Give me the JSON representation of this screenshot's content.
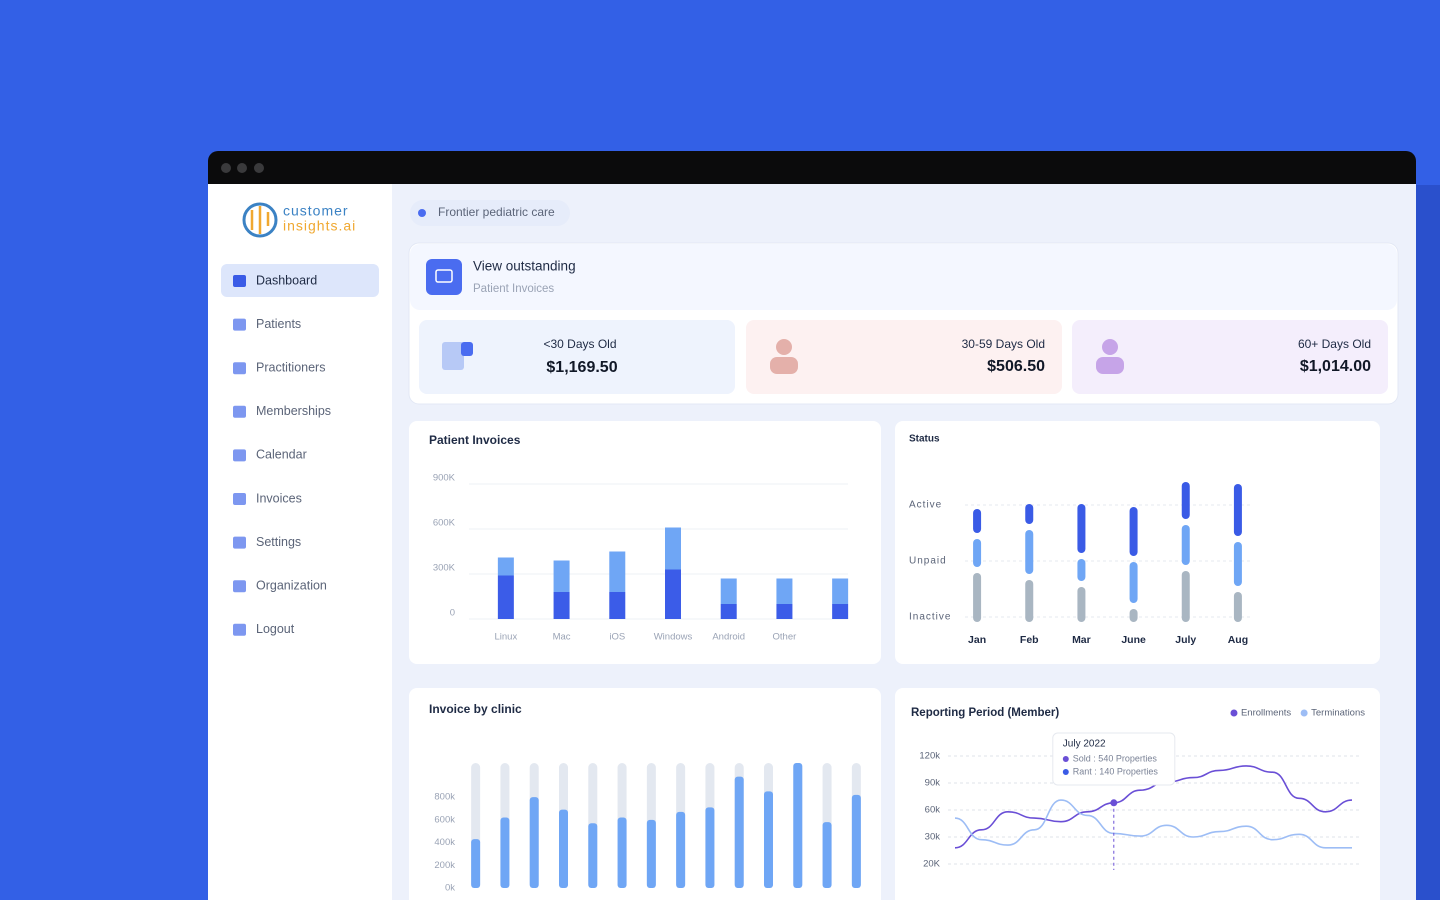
{
  "sidebar": {
    "logo": [
      "customer",
      "insights.ai"
    ],
    "nav": [
      "Dashboard",
      "Patients",
      "Practitioners",
      "Memberships",
      "Calendar",
      "Invoices",
      "Settings",
      "Organization",
      "Logout"
    ]
  },
  "header": {
    "location": "Frontier pediatric care"
  },
  "outstanding": {
    "title": "View outstanding",
    "subtitle": "Patient Invoices",
    "cards": [
      {
        "label": "<30 Days Old",
        "amount": "$1,169.50"
      },
      {
        "label": "30-59 Days Old",
        "amount": "$506.50"
      },
      {
        "label": "60+ Days Old",
        "amount": "$1,014.00"
      }
    ]
  },
  "chart_data": [
    {
      "type": "bar",
      "title": "Patient Invoices",
      "stacked": true,
      "grid": true,
      "categories": [
        "Linux",
        "Mac",
        "iOS",
        "Windows",
        "Android",
        "Other",
        null
      ],
      "series": [
        {
          "color": "#3b5ce8",
          "values": [
            290000,
            180000,
            180000,
            330000,
            100000,
            100000,
            100000
          ]
        },
        {
          "color": "#6fa6f5",
          "values": [
            120000,
            210000,
            270000,
            280000,
            170000,
            170000,
            170000
          ]
        }
      ],
      "ylim": [
        0,
        900000
      ],
      "yticks": [
        0,
        {
          "value": 300000,
          "label": "300K"
        },
        {
          "value": 600000,
          "label": "600K"
        },
        {
          "value": 900000,
          "label": "900K"
        }
      ]
    },
    {
      "type": "bar",
      "title": "Status",
      "stacked": true,
      "grid": true,
      "categories": [
        "Jan",
        "Feb",
        "Mar",
        "June",
        "July",
        "Aug"
      ],
      "series": [
        {
          "name": "Inactive",
          "color": "#a9b6c2",
          "values": [
            55,
            48,
            41,
            19,
            57,
            36
          ]
        },
        {
          "name": "Unpaid",
          "color": "#6fa6f5",
          "values": [
            34,
            50,
            28,
            47,
            46,
            50
          ]
        },
        {
          "name": "Active",
          "color": "#3a5be6",
          "values": [
            30,
            26,
            55,
            55,
            43,
            58
          ]
        }
      ],
      "ylim": [
        0,
        150
      ]
    },
    {
      "type": "bar",
      "title": "Invoice by clinic",
      "track": true,
      "color": "#6fa6f5",
      "values": [
        430000,
        620000,
        800000,
        690000,
        570000,
        620000,
        600000,
        670000,
        710000,
        980000,
        850000,
        1100000,
        580000,
        820000
      ],
      "ylim": [
        0,
        1100000
      ],
      "yticks": [
        {
          "value": 0,
          "label": "0k"
        },
        {
          "value": 200000,
          "label": "200k"
        },
        {
          "value": 400000,
          "label": "400k"
        },
        {
          "value": 600000,
          "label": "600k"
        },
        {
          "value": 800000,
          "label": "800k"
        }
      ]
    },
    {
      "type": "line",
      "title": "Reporting Period (Member)",
      "grid": true,
      "legend": "top-right",
      "categories": [
        null,
        null,
        null,
        null,
        null,
        null,
        null,
        null,
        null,
        null,
        null,
        null,
        null,
        null,
        null,
        null
      ],
      "series": [
        {
          "name": "Enrollments",
          "color": "#6a4fd6",
          "values": [
            26000,
            38000,
            58000,
            51000,
            47000,
            58000,
            68000,
            82000,
            91000,
            96000,
            104000,
            109000,
            102000,
            73000,
            58000,
            71000
          ]
        },
        {
          "name": "Terminations",
          "color": "#9dbdf5",
          "values": [
            51000,
            29000,
            27000,
            38000,
            71000,
            54000,
            34000,
            31000,
            43000,
            30000,
            36000,
            42000,
            29000,
            33000,
            26000,
            26000
          ]
        }
      ],
      "ylim": [
        20000,
        120000
      ],
      "yticks": [
        {
          "value": 20000,
          "label": "20K"
        },
        {
          "value": 30000,
          "label": "30k"
        },
        {
          "value": 60000,
          "label": "60k"
        },
        {
          "value": 90000,
          "label": "90k"
        },
        {
          "value": 120000,
          "label": "120k"
        }
      ],
      "tooltip": {
        "index": 6,
        "title": "July 2022",
        "lines": [
          "Sold : 540 Properties",
          "Rant : 140 Properties"
        ]
      }
    }
  ]
}
